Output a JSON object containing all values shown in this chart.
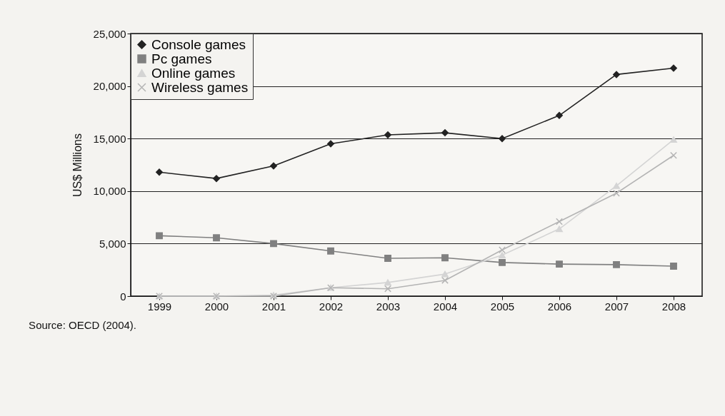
{
  "chart_data": {
    "type": "line",
    "ylabel": "US$ Millions",
    "categories": [
      "1999",
      "2000",
      "2001",
      "2002",
      "2003",
      "2004",
      "2005",
      "2006",
      "2007",
      "2008"
    ],
    "series": [
      {
        "name": "Console games",
        "color": "#222222",
        "marker": "diamond",
        "values": [
          11800,
          11200,
          12400,
          14500,
          15350,
          15550,
          15000,
          17200,
          21100,
          21700
        ]
      },
      {
        "name": "Pc games",
        "color": "#808080",
        "marker": "square",
        "values": [
          5750,
          5550,
          5000,
          4300,
          3600,
          3650,
          3200,
          3050,
          3000,
          2850
        ]
      },
      {
        "name": "Online games",
        "color": "#d4d4d4",
        "marker": "triangle",
        "values": [
          0,
          0,
          100,
          800,
          1300,
          2100,
          3900,
          6400,
          10500,
          14900
        ]
      },
      {
        "name": "Wireless games",
        "color": "#b4b4b4",
        "marker": "cross",
        "values": [
          0,
          0,
          0,
          800,
          700,
          1500,
          4400,
          7100,
          9800,
          13400
        ]
      }
    ],
    "ylim": [
      0,
      25000
    ],
    "yticks": [
      0,
      {
        "value": 5000,
        "label": "5,000"
      },
      {
        "value": 10000,
        "label": "10,000"
      },
      {
        "value": 15000,
        "label": "15,000"
      },
      {
        "value": 20000,
        "label": "20,000"
      },
      {
        "value": 25000,
        "label": "25,000"
      }
    ],
    "grid": "y",
    "legend": "top left",
    "annotations": [
      "Source: OECD (2004)."
    ]
  }
}
